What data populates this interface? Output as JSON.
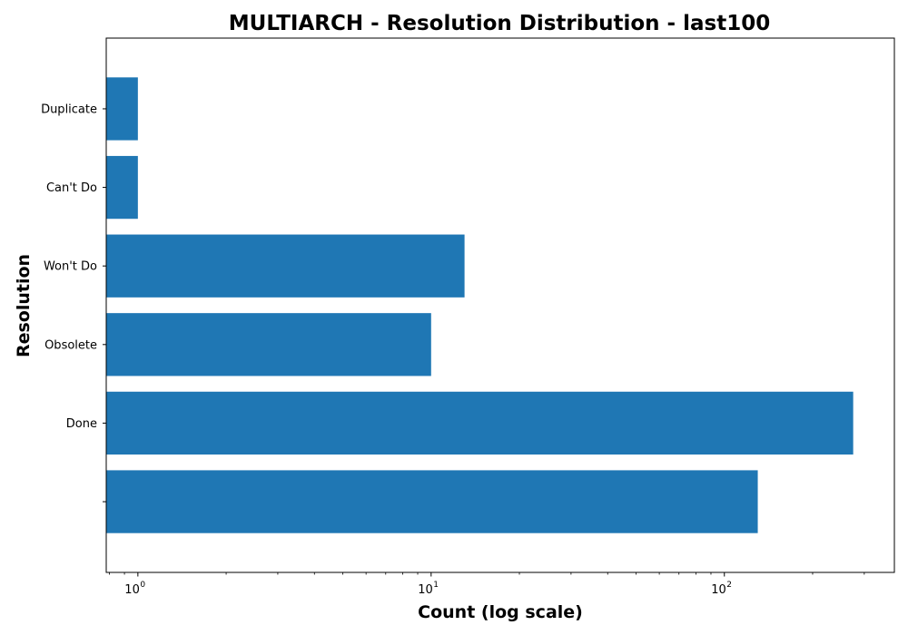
{
  "chart_data": {
    "type": "bar",
    "orientation": "horizontal",
    "title": "MULTIARCH - Resolution Distribution - last100",
    "xlabel": "Count (log scale)",
    "ylabel": "Resolution",
    "x_scale": "log",
    "xlim": [
      0.78,
      380
    ],
    "x_major_ticks": [
      {
        "value": 1,
        "base": "10",
        "exp": "0"
      },
      {
        "value": 10,
        "base": "10",
        "exp": "1"
      },
      {
        "value": 100,
        "base": "10",
        "exp": "2"
      }
    ],
    "categories": [
      "",
      "Done",
      "Obsolete",
      "Won't Do",
      "Can't Do",
      "Duplicate"
    ],
    "values": [
      130,
      275,
      10,
      13,
      1,
      1
    ],
    "bar_color": "#1f77b4",
    "grid": false,
    "legend": "none"
  }
}
